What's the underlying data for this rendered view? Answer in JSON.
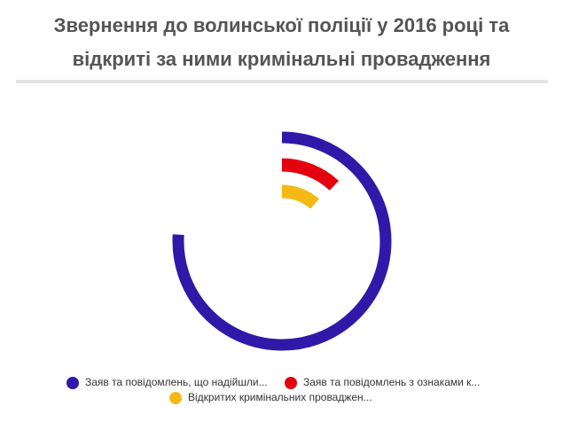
{
  "chart_data": {
    "type": "radial-bar",
    "title": "Звернення до волинської поліції у 2016 році та відкриті за ними кримінальні провадження",
    "rlim": [
      0,
      100
    ],
    "series": [
      {
        "name": "Заяв та повідомлень, що надійшли...",
        "color": "#3019a8",
        "values": [
          76
        ]
      },
      {
        "name": "Заяв та повідомлень з ознаками к...",
        "color": "#e3000f",
        "values": [
          12
        ]
      },
      {
        "name": "Відкритих кримінальних проваджен...",
        "color": "#f5b915",
        "values": [
          11.5
        ]
      }
    ]
  }
}
